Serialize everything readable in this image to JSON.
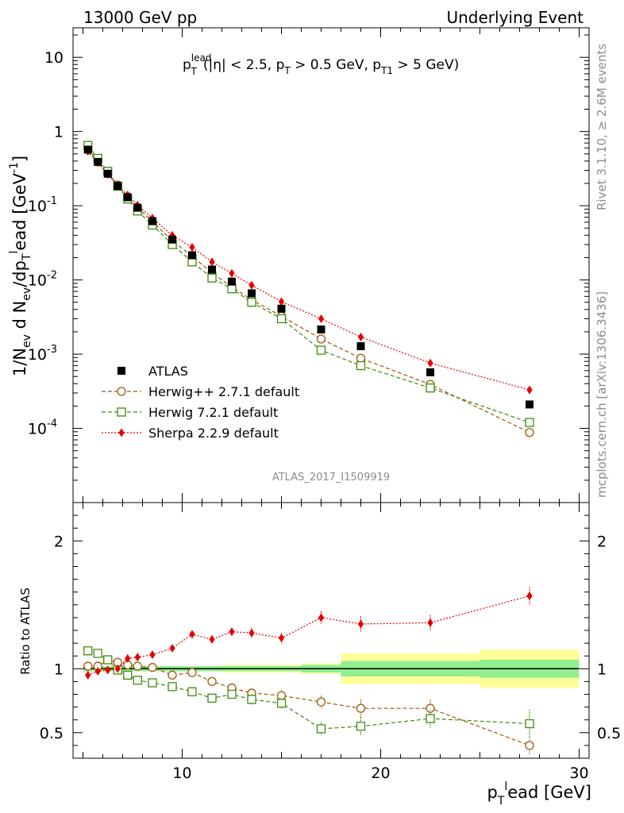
{
  "header": {
    "left": "13000 GeV pp",
    "right": "Underlying Event"
  },
  "side": {
    "rivet": "Rivet 3.1.10, ≥ 2.6M events",
    "mcplots": "mcplots.cern.ch [arXiv:1306.3436]"
  },
  "watermark": "ATLAS_2017_I1509919",
  "main_title": {
    "p": "p",
    "sup": "lead",
    "sub": "T",
    "rest": "(|η| < 2.5, p",
    "rest_sub1": "T",
    "rest2": " > 0.5 GeV, p",
    "rest_sub2": "T1",
    "rest3": " > 5 GeV)"
  },
  "y_axis_label_main": "1/N_ev d N_ev/dp_T lead [GeV^-1]",
  "y_axis_label_ratio": "Ratio to ATLAS",
  "x_axis_label": "p_T lead [GeV]",
  "colors": {
    "data": "#000000",
    "herwigpp": "#a0580a",
    "herwig7": "#3c8c0c",
    "sherpa": "#e60000",
    "band_inner": "#90ee90",
    "band_outer": "#ffff99"
  },
  "chart_data": [
    {
      "type": "scatter",
      "title": "p_T lead (|eta| < 2.5, p_T > 0.5 GeV, p_T1 > 5 GeV)",
      "xlabel": "p_T lead [GeV]",
      "ylabel": "1/N_ev d N_ev/dp_T lead [GeV^-1]",
      "yscale": "log",
      "xlim": [
        4.5,
        30.5
      ],
      "ylim": [
        1e-05,
        25
      ],
      "x_ticks": [
        10,
        20,
        30
      ],
      "y_ticks": [
        {
          "v": 10,
          "label": "10"
        },
        {
          "v": 1,
          "label": "1"
        },
        {
          "v": 0.1,
          "label": "10",
          "exp": "-1"
        },
        {
          "v": 0.01,
          "label": "10",
          "exp": "-2"
        },
        {
          "v": 0.001,
          "label": "10",
          "exp": "-3"
        },
        {
          "v": 0.0001,
          "label": "10",
          "exp": "-4"
        }
      ],
      "x": [
        5.25,
        5.75,
        6.25,
        6.75,
        7.25,
        7.75,
        8.5,
        9.5,
        10.5,
        11.5,
        12.5,
        13.5,
        15,
        17,
        19,
        22.5,
        27.5
      ],
      "series": [
        {
          "name": "ATLAS",
          "marker": "square",
          "values": [
            0.57,
            0.39,
            0.27,
            0.185,
            0.13,
            0.094,
            0.062,
            0.035,
            0.0215,
            0.0138,
            0.0095,
            0.0066,
            0.0041,
            0.00215,
            0.00128,
            0.00057,
            0.00021
          ]
        },
        {
          "name": "Herwig++ 2.7.1 default",
          "marker": "circle",
          "line": "dashed",
          "values": [
            0.585,
            0.4,
            0.28,
            0.19,
            0.132,
            0.094,
            0.0615,
            0.0335,
            0.021,
            0.0124,
            0.0081,
            0.0054,
            0.00325,
            0.0016,
            0.00088,
            0.00039,
            8.8e-05
          ]
        },
        {
          "name": "Herwig 7.2.1 default",
          "marker": "open-square",
          "line": "dashed",
          "values": [
            0.65,
            0.435,
            0.29,
            0.183,
            0.123,
            0.085,
            0.055,
            0.03,
            0.0175,
            0.0106,
            0.0076,
            0.005,
            0.003,
            0.00113,
            0.0007,
            0.00035,
            0.00012
          ]
        },
        {
          "name": "Sherpa 2.2.9 default",
          "marker": "diamond",
          "line": "dotted",
          "values": [
            0.54,
            0.38,
            0.265,
            0.185,
            0.14,
            0.102,
            0.068,
            0.04,
            0.0275,
            0.0175,
            0.0123,
            0.0085,
            0.0051,
            0.003,
            0.0017,
            0.00076,
            0.00033
          ]
        }
      ]
    },
    {
      "type": "scatter",
      "title": "Ratio to ATLAS",
      "xlabel": "p_T lead [GeV]",
      "ylabel": "Ratio to ATLAS",
      "ylim": [
        0.3,
        2.3
      ],
      "x_ticks": [
        10,
        20,
        30
      ],
      "y_ticks": [
        0.5,
        1,
        2
      ],
      "x": [
        5.25,
        5.75,
        6.25,
        6.75,
        7.25,
        7.75,
        8.5,
        9.5,
        10.5,
        11.5,
        12.5,
        13.5,
        15,
        17,
        19,
        22.5,
        27.5
      ],
      "band_edges": [
        5,
        5.5,
        6,
        6.5,
        7,
        7.5,
        8,
        9,
        10,
        11,
        12,
        13,
        14,
        16,
        18,
        20,
        25,
        30
      ],
      "band_inner": [
        0.02,
        0.02,
        0.02,
        0.02,
        0.02,
        0.02,
        0.02,
        0.02,
        0.02,
        0.02,
        0.02,
        0.02,
        0.02,
        0.03,
        0.06,
        0.06,
        0.07
      ],
      "band_outer": [
        0.02,
        0.02,
        0.02,
        0.02,
        0.02,
        0.02,
        0.02,
        0.02,
        0.02,
        0.02,
        0.03,
        0.03,
        0.03,
        0.04,
        0.12,
        0.12,
        0.15
      ],
      "series": [
        {
          "name": "Herwig++ 2.7.1 default",
          "values": [
            1.02,
            1.02,
            1.07,
            1.05,
            1.03,
            1.02,
            1.01,
            0.95,
            0.97,
            0.9,
            0.85,
            0.81,
            0.79,
            0.74,
            0.69,
            0.69,
            0.4
          ],
          "errors": [
            0.01,
            0.01,
            0.01,
            0.01,
            0.01,
            0.01,
            0.01,
            0.01,
            0.02,
            0.02,
            0.03,
            0.03,
            0.04,
            0.05,
            0.07,
            0.07,
            0.07
          ]
        },
        {
          "name": "Herwig 7.2.1 default",
          "values": [
            1.14,
            1.12,
            1.07,
            0.99,
            0.95,
            0.91,
            0.89,
            0.86,
            0.82,
            0.77,
            0.8,
            0.76,
            0.73,
            0.53,
            0.55,
            0.61,
            0.57
          ],
          "errors": [
            0.01,
            0.01,
            0.01,
            0.01,
            0.01,
            0.01,
            0.01,
            0.02,
            0.02,
            0.02,
            0.03,
            0.04,
            0.04,
            0.05,
            0.07,
            0.07,
            0.11
          ]
        },
        {
          "name": "Sherpa 2.2.9 default",
          "values": [
            0.95,
            0.98,
            0.99,
            1.0,
            1.08,
            1.09,
            1.11,
            1.16,
            1.27,
            1.23,
            1.29,
            1.28,
            1.24,
            1.4,
            1.35,
            1.36,
            1.57
          ],
          "errors": [
            0.01,
            0.01,
            0.01,
            0.01,
            0.02,
            0.02,
            0.02,
            0.02,
            0.03,
            0.03,
            0.03,
            0.04,
            0.04,
            0.05,
            0.06,
            0.06,
            0.07
          ]
        }
      ]
    }
  ]
}
